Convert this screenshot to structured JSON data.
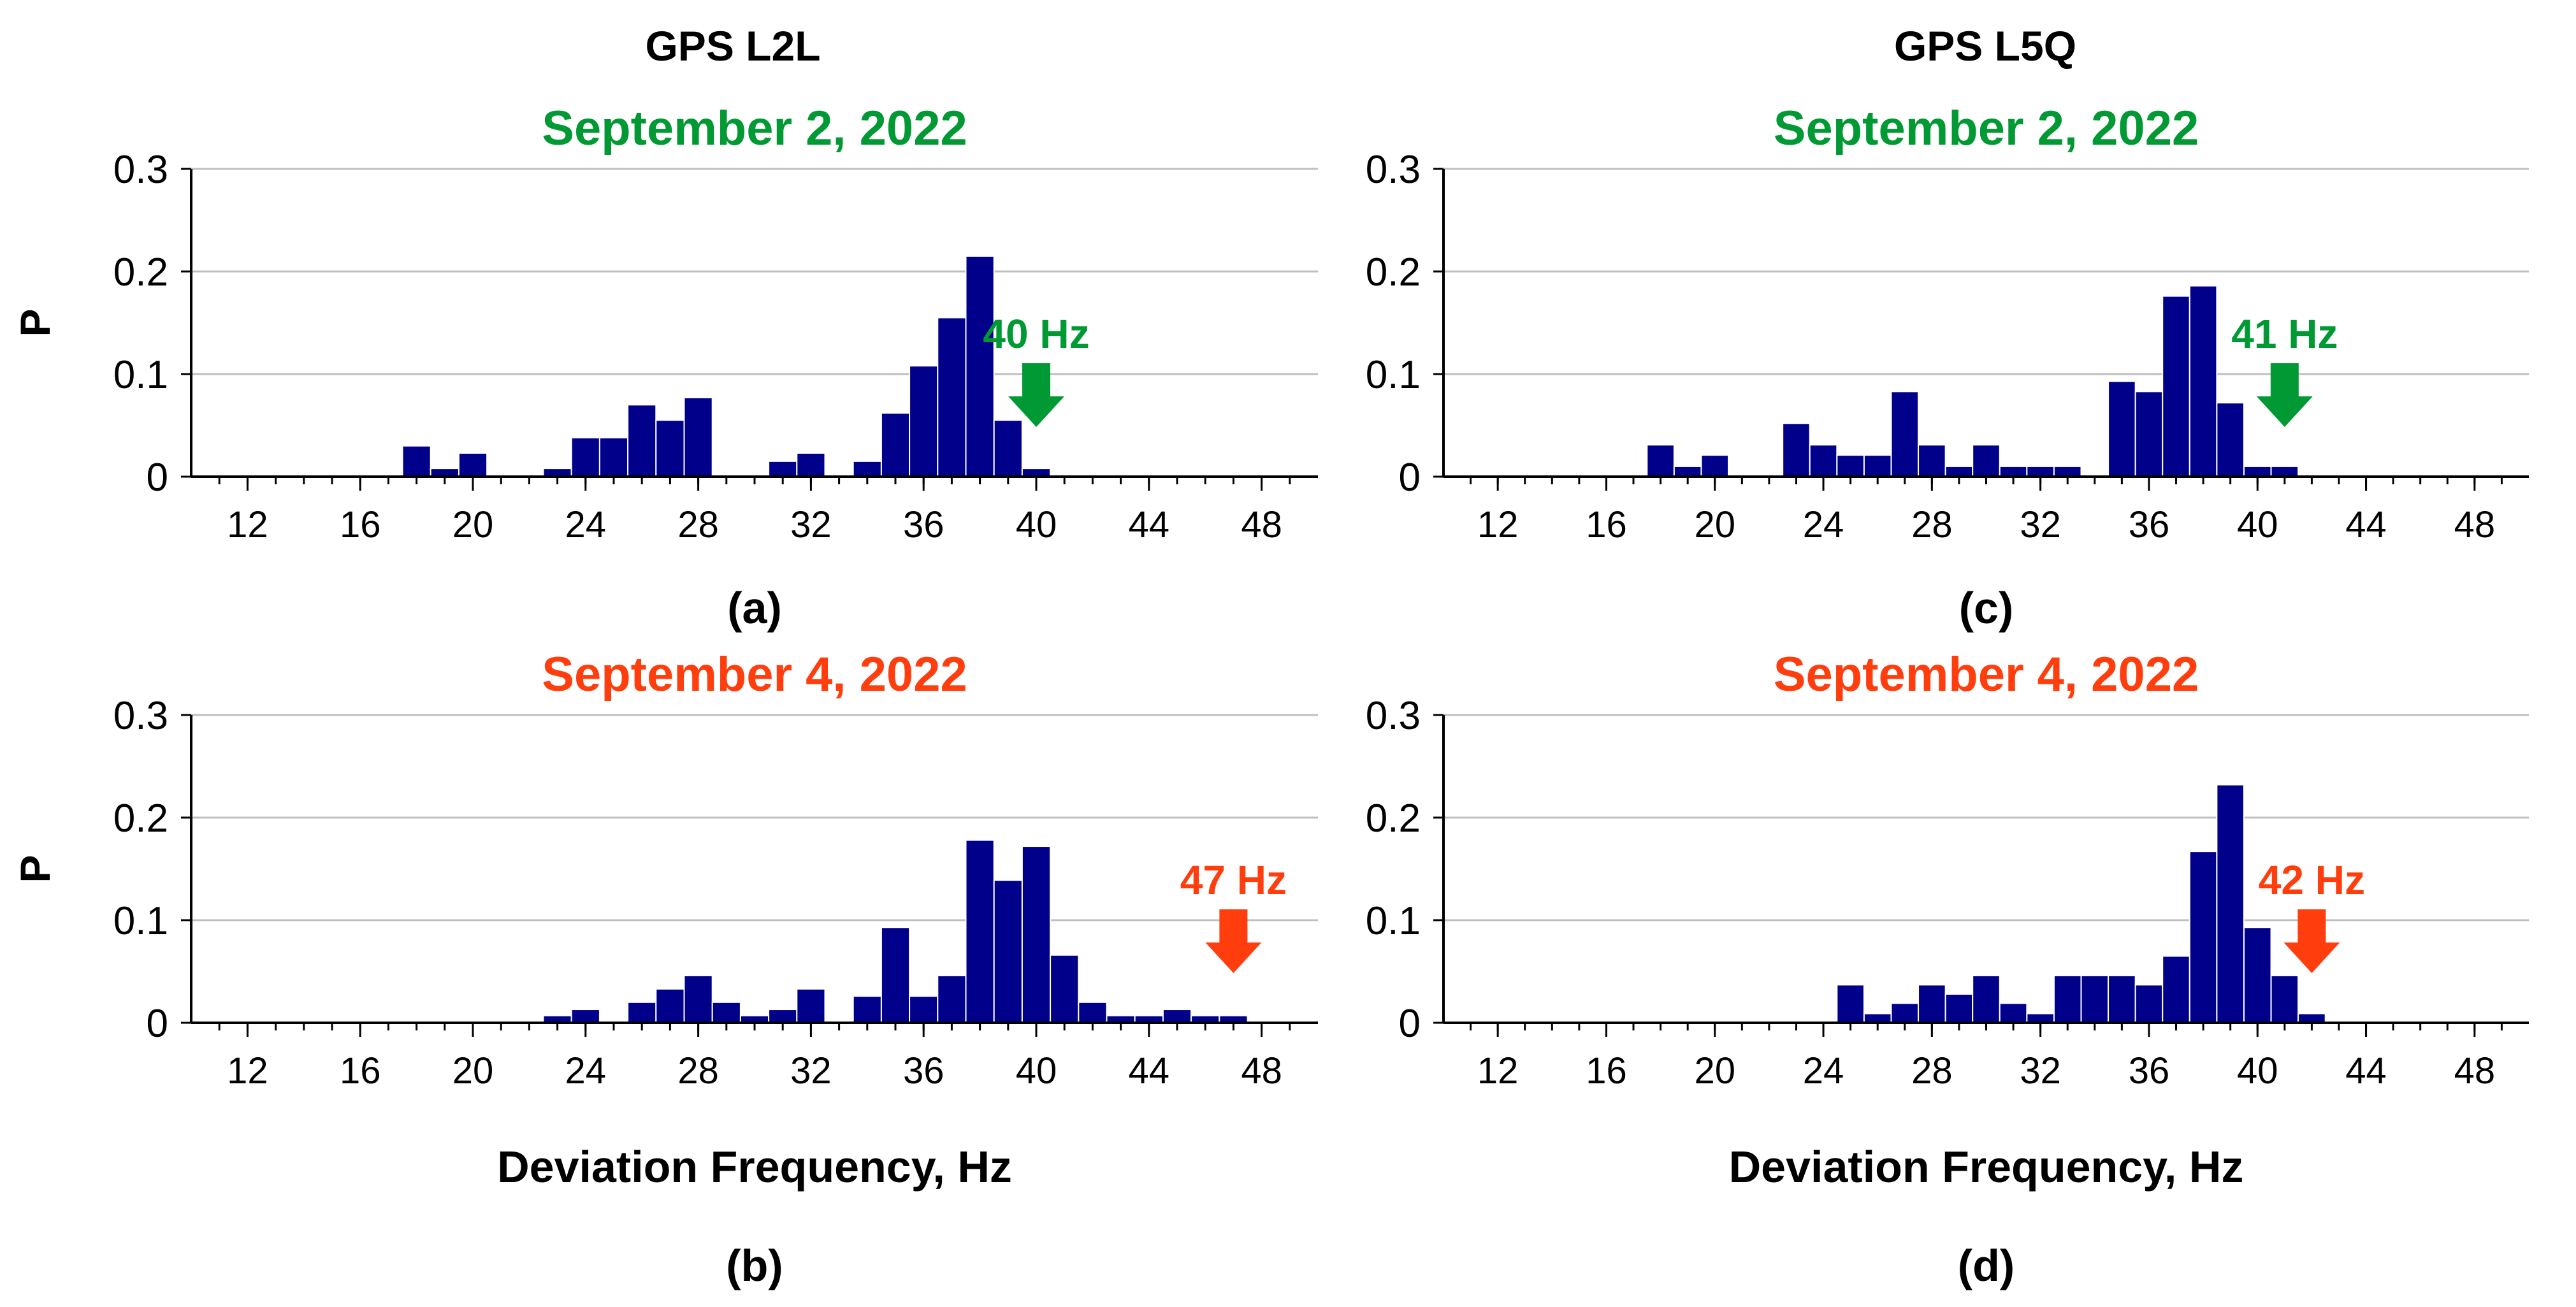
{
  "columns": [
    {
      "title": "GPS L2L"
    },
    {
      "title": "GPS L5Q"
    }
  ],
  "colors": {
    "bar": "#00008b",
    "sep2": "#009933",
    "sep4": "#ff3d0d",
    "grid": "#bfbfbf",
    "axis": "#000000"
  },
  "chart_data": [
    {
      "id": "a",
      "type": "bar",
      "panel_label": "(a)",
      "title": "September 2, 2022",
      "title_color": "sep2",
      "ylabel": "P",
      "xlabel": "",
      "xlim": [
        10,
        50
      ],
      "ylim": [
        0,
        0.3
      ],
      "yticks": [
        0,
        0.1,
        0.2,
        0.3
      ],
      "ytick_labels": [
        "0",
        "0.1",
        "0.2",
        "0.3"
      ],
      "xticks": [
        12,
        16,
        20,
        24,
        28,
        32,
        36,
        40,
        44,
        48
      ],
      "xtick_labels": [
        "12",
        "16",
        "20",
        "24",
        "28",
        "32",
        "36",
        "40",
        "44",
        "48"
      ],
      "x": [
        18,
        19,
        20,
        23,
        24,
        25,
        26,
        27,
        28,
        31,
        32,
        34,
        35,
        36,
        37,
        38,
        39,
        40
      ],
      "values": [
        0.03,
        0.008,
        0.023,
        0.008,
        0.038,
        0.038,
        0.07,
        0.055,
        0.077,
        0.015,
        0.023,
        0.015,
        0.062,
        0.108,
        0.155,
        0.215,
        0.055,
        0.008
      ],
      "annotation": {
        "text": "40 Hz",
        "x": 40,
        "color": "sep2"
      }
    },
    {
      "id": "b",
      "type": "bar",
      "panel_label": "(b)",
      "title": "September 4, 2022",
      "title_color": "sep4",
      "ylabel": "P",
      "xlabel": "Deviation Frequency, Hz",
      "xlim": [
        10,
        50
      ],
      "ylim": [
        0,
        0.3
      ],
      "yticks": [
        0,
        0.1,
        0.2,
        0.3
      ],
      "ytick_labels": [
        "0",
        "0.1",
        "0.2",
        "0.3"
      ],
      "xticks": [
        12,
        16,
        20,
        24,
        28,
        32,
        36,
        40,
        44,
        48
      ],
      "xtick_labels": [
        "12",
        "16",
        "20",
        "24",
        "28",
        "32",
        "36",
        "40",
        "44",
        "48"
      ],
      "x": [
        23,
        24,
        26,
        27,
        28,
        29,
        30,
        31,
        32,
        34,
        35,
        36,
        37,
        38,
        39,
        40,
        41,
        42,
        43,
        44,
        45,
        46,
        47
      ],
      "values": [
        0.007,
        0.013,
        0.02,
        0.033,
        0.046,
        0.02,
        0.007,
        0.013,
        0.033,
        0.026,
        0.093,
        0.026,
        0.046,
        0.178,
        0.139,
        0.172,
        0.066,
        0.02,
        0.007,
        0.007,
        0.013,
        0.007,
        0.007
      ],
      "annotation": {
        "text": "47 Hz",
        "x": 47,
        "color": "sep4"
      }
    },
    {
      "id": "c",
      "type": "bar",
      "panel_label": "(c)",
      "title": "September 2, 2022",
      "title_color": "sep2",
      "ylabel": "",
      "xlabel": "",
      "xlim": [
        10,
        50
      ],
      "ylim": [
        0,
        0.3
      ],
      "yticks": [
        0,
        0.1,
        0.2,
        0.3
      ],
      "ytick_labels": [
        "0",
        "0.1",
        "0.2",
        "0.3"
      ],
      "xticks": [
        12,
        16,
        20,
        24,
        28,
        32,
        36,
        40,
        44,
        48
      ],
      "xtick_labels": [
        "12",
        "16",
        "20",
        "24",
        "28",
        "32",
        "36",
        "40",
        "44",
        "48"
      ],
      "x": [
        18,
        19,
        20,
        23,
        24,
        25,
        26,
        27,
        28,
        29,
        30,
        31,
        32,
        33,
        35,
        36,
        37,
        38,
        39,
        40,
        41
      ],
      "values": [
        0.031,
        0.01,
        0.021,
        0.052,
        0.031,
        0.021,
        0.021,
        0.083,
        0.031,
        0.01,
        0.031,
        0.01,
        0.01,
        0.01,
        0.093,
        0.083,
        0.176,
        0.186,
        0.072,
        0.01,
        0.01
      ],
      "annotation": {
        "text": "41 Hz",
        "x": 41,
        "color": "sep2"
      }
    },
    {
      "id": "d",
      "type": "bar",
      "panel_label": "(d)",
      "title": "September 4, 2022",
      "title_color": "sep4",
      "ylabel": "",
      "xlabel": "Deviation Frequency, Hz",
      "xlim": [
        10,
        50
      ],
      "ylim": [
        0,
        0.3
      ],
      "yticks": [
        0,
        0.1,
        0.2,
        0.3
      ],
      "ytick_labels": [
        "0",
        "0.1",
        "0.2",
        "0.3"
      ],
      "xticks": [
        12,
        16,
        20,
        24,
        28,
        32,
        36,
        40,
        44,
        48
      ],
      "xtick_labels": [
        "12",
        "16",
        "20",
        "24",
        "28",
        "32",
        "36",
        "40",
        "44",
        "48"
      ],
      "x": [
        25,
        26,
        27,
        28,
        29,
        30,
        31,
        32,
        33,
        34,
        35,
        36,
        37,
        38,
        39,
        40,
        41,
        42
      ],
      "values": [
        0.037,
        0.009,
        0.019,
        0.037,
        0.028,
        0.046,
        0.019,
        0.009,
        0.046,
        0.046,
        0.046,
        0.037,
        0.065,
        0.167,
        0.232,
        0.093,
        0.046,
        0.009
      ],
      "annotation": {
        "text": "42 Hz",
        "x": 42,
        "color": "sep4"
      }
    }
  ]
}
